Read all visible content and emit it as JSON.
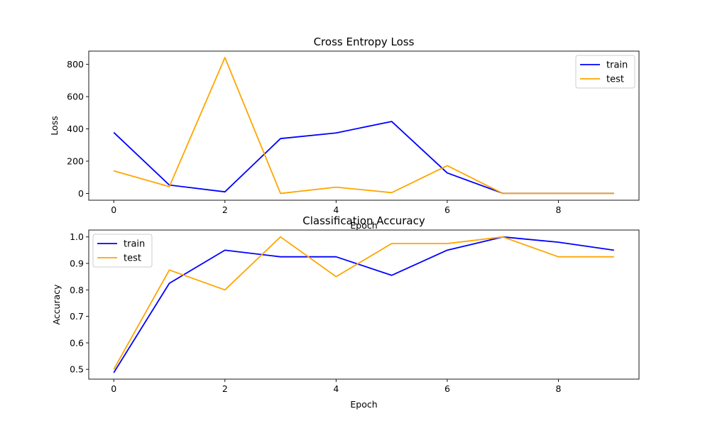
{
  "colors": {
    "train": "#0000ff",
    "test": "#ffa500"
  },
  "chart_data": [
    {
      "type": "line",
      "title": "Cross Entropy Loss",
      "xlabel": "Epoch",
      "ylabel": "Loss",
      "xlim": [
        -0.45,
        9.45
      ],
      "ylim": [
        -42,
        882
      ],
      "xticks": [
        0,
        2,
        4,
        6,
        8
      ],
      "yticks": [
        0,
        200,
        400,
        600,
        800
      ],
      "grid": false,
      "legend_position": "upper right",
      "x": [
        0,
        1,
        2,
        3,
        4,
        5,
        6,
        7,
        8,
        9
      ],
      "series": [
        {
          "name": "train",
          "values": [
            378,
            52,
            10,
            340,
            375,
            446,
            127,
            1,
            1,
            1
          ]
        },
        {
          "name": "test",
          "values": [
            140,
            42,
            842,
            0,
            39,
            5,
            172,
            0,
            0,
            0
          ]
        }
      ]
    },
    {
      "type": "line",
      "title": "Classification Accuracy",
      "xlabel": "Epoch",
      "ylabel": "Accuracy",
      "xlim": [
        -0.45,
        9.45
      ],
      "ylim": [
        0.463,
        1.026
      ],
      "xticks": [
        0,
        2,
        4,
        6,
        8
      ],
      "yticks": [
        0.5,
        0.6,
        0.7,
        0.8,
        0.9,
        1.0
      ],
      "ytick_labels": [
        "0.5",
        "0.6",
        "0.7",
        "0.8",
        "0.9",
        "1.0"
      ],
      "grid": false,
      "legend_position": "upper left",
      "x": [
        0,
        1,
        2,
        3,
        4,
        5,
        6,
        7,
        8,
        9
      ],
      "series": [
        {
          "name": "train",
          "values": [
            0.4875,
            0.825,
            0.95,
            0.925,
            0.925,
            0.855,
            0.95,
            1.0,
            0.98,
            0.95
          ]
        },
        {
          "name": "test",
          "values": [
            0.5,
            0.875,
            0.8,
            1.0,
            0.85,
            0.975,
            0.975,
            1.0,
            0.925,
            0.925
          ]
        }
      ]
    }
  ]
}
